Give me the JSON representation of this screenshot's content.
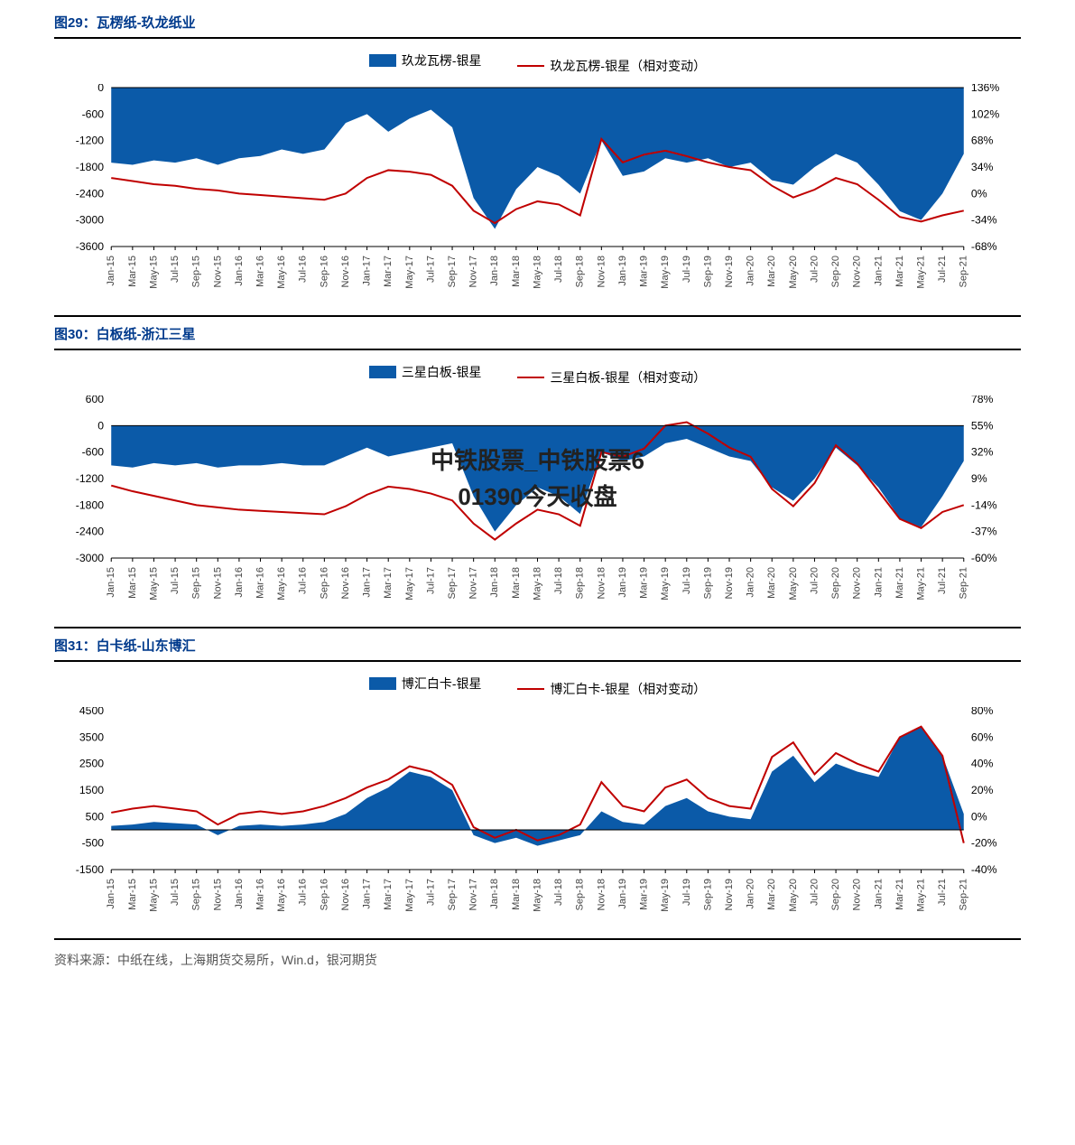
{
  "x_labels": [
    "Jan-15",
    "Mar-15",
    "May-15",
    "Jul-15",
    "Sep-15",
    "Nov-15",
    "Jan-16",
    "Mar-16",
    "May-16",
    "Jul-16",
    "Sep-16",
    "Nov-16",
    "Jan-17",
    "Mar-17",
    "May-17",
    "Jul-17",
    "Sep-17",
    "Nov-17",
    "Jan-18",
    "Mar-18",
    "May-18",
    "Jul-18",
    "Sep-18",
    "Nov-18",
    "Jan-19",
    "Mar-19",
    "May-19",
    "Jul-19",
    "Sep-19",
    "Nov-19",
    "Jan-20",
    "Mar-20",
    "May-20",
    "Jul-20",
    "Sep-20",
    "Nov-20",
    "Jan-21",
    "Mar-21",
    "May-21",
    "Jul-21",
    "Sep-21"
  ],
  "colors": {
    "area": "#0b5aa8",
    "line": "#c00000",
    "axis": "#000000",
    "tick_text": "#444444",
    "title": "#003a8c",
    "bg": "#ffffff"
  },
  "label_fontsize": 12,
  "xlabel_fontsize": 11,
  "chart29": {
    "title": "图29：瓦楞纸-玖龙纸业",
    "legend_area": "玖龙瓦楞-银星",
    "legend_line": "玖龙瓦楞-银星（相对变动）",
    "left_ticks": [
      0,
      -600,
      -1200,
      -1800,
      -2400,
      -3000,
      -3600
    ],
    "right_ticks": [
      "136%",
      "102%",
      "68%",
      "34%",
      "0%",
      "-34%",
      "-68%"
    ],
    "y_left": {
      "min": -3600,
      "max": 0
    },
    "y_right": {
      "min": -68,
      "max": 136
    },
    "area_values": [
      -1700,
      -1750,
      -1650,
      -1700,
      -1600,
      -1750,
      -1600,
      -1550,
      -1400,
      -1500,
      -1400,
      -800,
      -600,
      -1000,
      -700,
      -500,
      -900,
      -2500,
      -3200,
      -2300,
      -1800,
      -2000,
      -2400,
      -1200,
      -2000,
      -1900,
      -1600,
      -1700,
      -1600,
      -1800,
      -1700,
      -2100,
      -2200,
      -1800,
      -1500,
      -1700,
      -2200,
      -2800,
      -3000,
      -2400,
      -1500
    ],
    "line_values": [
      20,
      16,
      12,
      10,
      6,
      4,
      0,
      -2,
      -4,
      -6,
      -8,
      0,
      20,
      30,
      28,
      24,
      10,
      -22,
      -38,
      -20,
      -10,
      -14,
      -28,
      70,
      40,
      50,
      55,
      48,
      40,
      34,
      30,
      10,
      -5,
      5,
      20,
      12,
      -8,
      -30,
      -36,
      -28,
      -22
    ]
  },
  "chart30": {
    "title": "图30：白板纸-浙江三星",
    "legend_area": "三星白板-银星",
    "legend_line": "三星白板-银星（相对变动）",
    "left_ticks": [
      600,
      0,
      -600,
      -1200,
      -1800,
      -2400,
      -3000
    ],
    "right_ticks": [
      "78%",
      "55%",
      "32%",
      "9%",
      "-14%",
      "-37%",
      "-60%"
    ],
    "y_left": {
      "min": -3000,
      "max": 600
    },
    "y_right": {
      "min": -60,
      "max": 78
    },
    "area_values": [
      -900,
      -950,
      -850,
      -900,
      -850,
      -950,
      -900,
      -900,
      -850,
      -900,
      -900,
      -700,
      -500,
      -700,
      -600,
      -500,
      -400,
      -1600,
      -2400,
      -1800,
      -1400,
      -1600,
      -2000,
      -600,
      -800,
      -700,
      -400,
      -300,
      -500,
      -700,
      -800,
      -1400,
      -1700,
      -1200,
      -500,
      -900,
      -1400,
      -2100,
      -2300,
      -1600,
      -800
    ],
    "line_values": [
      3,
      -2,
      -6,
      -10,
      -14,
      -16,
      -18,
      -19,
      -20,
      -21,
      -22,
      -15,
      -5,
      2,
      0,
      -4,
      -10,
      -30,
      -44,
      -30,
      -18,
      -22,
      -32,
      32,
      28,
      35,
      55,
      58,
      48,
      36,
      28,
      0,
      -15,
      5,
      38,
      22,
      -2,
      -26,
      -34,
      -20,
      -14
    ],
    "watermark_line1": "中铁股票_中铁股票6",
    "watermark_line2": "01390今天收盘"
  },
  "chart31": {
    "title": "图31：白卡纸-山东博汇",
    "legend_area": "博汇白卡-银星",
    "legend_line": "博汇白卡-银星（相对变动）",
    "left_ticks": [
      4500,
      3500,
      2500,
      1500,
      500,
      -500,
      -1500
    ],
    "right_ticks": [
      "80%",
      "60%",
      "40%",
      "20%",
      "0%",
      "-20%",
      "-40%"
    ],
    "y_left": {
      "min": -1500,
      "max": 4500
    },
    "y_right": {
      "min": -40,
      "max": 80
    },
    "area_values": [
      150,
      200,
      300,
      250,
      200,
      -200,
      150,
      200,
      150,
      200,
      300,
      600,
      1200,
      1600,
      2200,
      2000,
      1500,
      -200,
      -500,
      -300,
      -600,
      -400,
      -200,
      700,
      300,
      200,
      900,
      1200,
      700,
      500,
      400,
      2200,
      2800,
      1800,
      2500,
      2200,
      2000,
      3500,
      3900,
      2800,
      600
    ],
    "line_values": [
      3,
      6,
      8,
      6,
      4,
      -6,
      2,
      4,
      2,
      4,
      8,
      14,
      22,
      28,
      38,
      34,
      24,
      -8,
      -16,
      -10,
      -18,
      -14,
      -6,
      26,
      8,
      4,
      22,
      28,
      14,
      8,
      6,
      45,
      56,
      32,
      48,
      40,
      34,
      60,
      68,
      46,
      -20
    ]
  },
  "footer": "资料来源：中纸在线，上海期货交易所，Win.d，银河期货"
}
